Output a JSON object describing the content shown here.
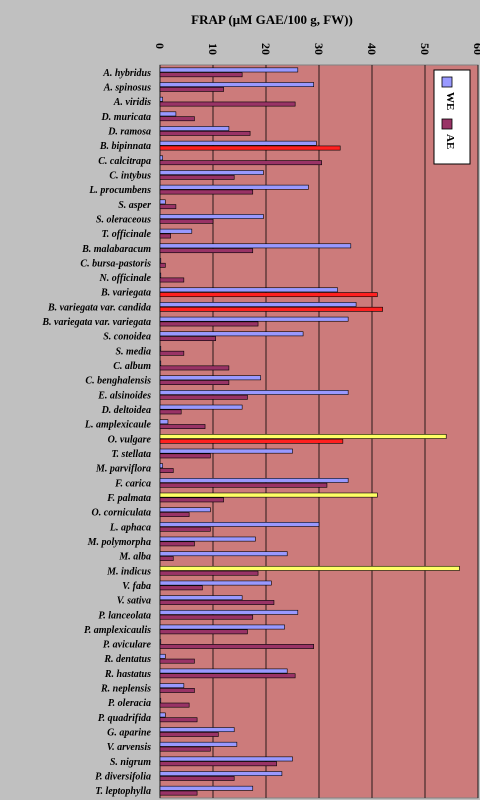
{
  "chart_data": {
    "type": "bar",
    "orientation": "horizontal",
    "title": "FRAP (µM GAE/100 g, FW))",
    "xlim": [
      0,
      60
    ],
    "xticks": [
      0,
      10,
      20,
      30,
      40,
      50,
      60
    ],
    "grid": true,
    "legend_position": "top-right",
    "colors": {
      "plot_bg": "#cc7b7b",
      "page_bg": "#c0c0c0",
      "we": "#9999ff",
      "ae": "#993366",
      "highlight_red": "#ff2020",
      "highlight_yellow": "#ffff66"
    },
    "categories": [
      "A. hybridus",
      "A. spinosus",
      "A. viridis",
      "D. muricata",
      "D. ramosa",
      "B. bipinnata",
      "C. calcitrapa",
      "C. intybus",
      "L. procumbens",
      "S. asper",
      "S. oleraceous",
      "T. officinale",
      "B. malabaracum",
      "C. bursa-pastoris",
      "N. officinale",
      "B. variegata",
      "B. variegata var. candida",
      "B. variegata var. variegata",
      "S. conoidea",
      "S. media",
      "C. album",
      "C. benghalensis",
      "E. alsinoides",
      "D. deltoidea",
      "L. amplexicaule",
      "O. vulgare",
      "T. stellata",
      "M. parviflora",
      "F. carica",
      "F. palmata",
      "O. corniculata",
      "L. aphaca",
      "M. polymorpha",
      "M. alba",
      "M. indicus",
      "V. faba",
      "V. sativa",
      "P. lanceolata",
      "P. amplexicaulis",
      "P. aviculare",
      "R. dentatus",
      "R. hastatus",
      "R. neplensis",
      "P. oleracia",
      "P. quadrifida",
      "G. aparine",
      "V. arvensis",
      "S. nigrum",
      "P. diversifolia",
      "T. leptophylla"
    ],
    "series": [
      {
        "name": "WE",
        "values": [
          26,
          29,
          0.5,
          3,
          13,
          29.5,
          0.5,
          19.5,
          28,
          1,
          19.5,
          6,
          36,
          0,
          0,
          33.5,
          37,
          35.5,
          27,
          0,
          0,
          19,
          35.5,
          15.5,
          1.5,
          54,
          25,
          0.5,
          35.5,
          41,
          9.5,
          30,
          18,
          24,
          56.5,
          21,
          15.5,
          26,
          23.5,
          0,
          1,
          24,
          4.5,
          0,
          1,
          14,
          14.5,
          25,
          23,
          17.5
        ],
        "highlights": {
          "25": "#ffff66",
          "29": "#ffff66",
          "34": "#ffff66"
        }
      },
      {
        "name": "AE",
        "values": [
          15.5,
          12,
          25.5,
          6.5,
          17,
          34,
          30.5,
          14,
          17.5,
          3,
          10,
          2,
          17.5,
          1,
          4.5,
          41,
          42,
          18.5,
          10.5,
          4.5,
          13,
          13,
          16.5,
          4,
          8.5,
          34.5,
          9.5,
          2.5,
          31.5,
          12,
          5.5,
          9.5,
          6.5,
          2.5,
          18.5,
          8,
          21.5,
          17.5,
          16.5,
          29,
          6.5,
          25.5,
          6.5,
          5.5,
          7,
          11,
          9.5,
          22,
          14,
          7
        ],
        "highlights": {
          "5": "#ff2020",
          "15": "#ff2020",
          "16": "#ff2020",
          "25": "#ff2020"
        }
      }
    ]
  }
}
